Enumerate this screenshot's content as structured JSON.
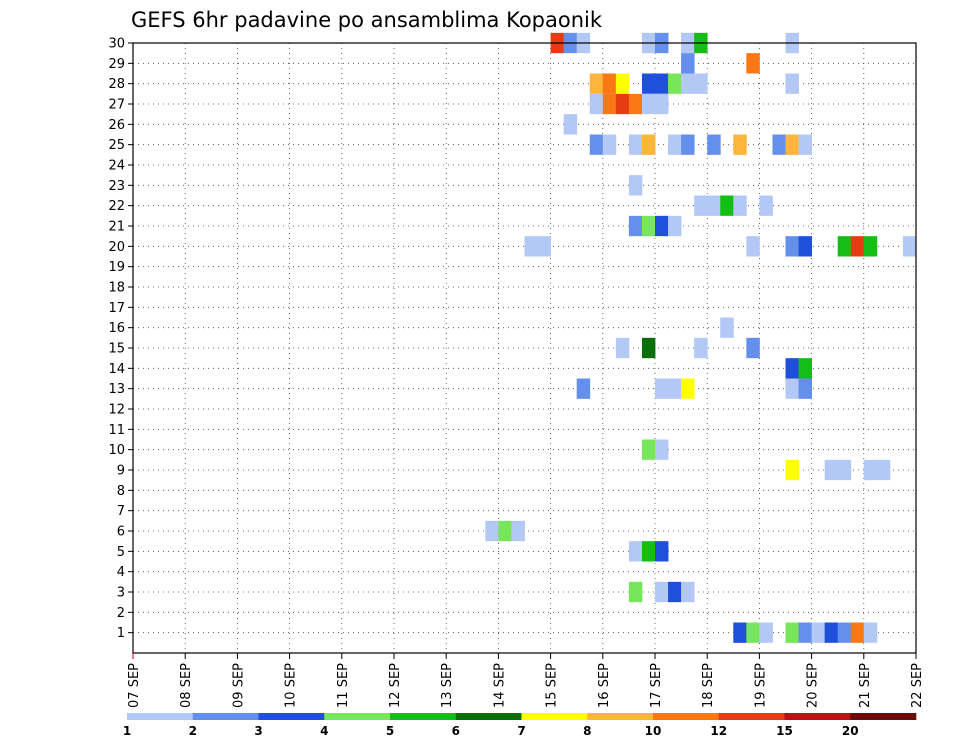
{
  "title": "GEFS 6hr padavine po ansamblima Kopaonik",
  "chart_data": {
    "type": "heatmap",
    "title": "GEFS 6hr padavine po ansamblima Kopaonik",
    "x_tick_labels": [
      "07 SEP",
      "08 SEP",
      "09 SEP",
      "10 SEP",
      "11 SEP",
      "12 SEP",
      "13 SEP",
      "14 SEP",
      "15 SEP",
      "16 SEP",
      "17 SEP",
      "18 SEP",
      "19 SEP",
      "20 SEP",
      "21 SEP",
      "22 SEP"
    ],
    "y_tick_labels": [
      "1",
      "2",
      "3",
      "4",
      "5",
      "6",
      "7",
      "8",
      "9",
      "10",
      "11",
      "12",
      "13",
      "14",
      "15",
      "16",
      "17",
      "18",
      "19",
      "20",
      "21",
      "22",
      "23",
      "24",
      "25",
      "26",
      "27",
      "28",
      "29",
      "30"
    ],
    "ylim": [
      0,
      30
    ],
    "grid": true,
    "colorbar": {
      "labels": [
        "1",
        "2",
        "3",
        "4",
        "5",
        "6",
        "7",
        "8",
        "10",
        "12",
        "15",
        "20"
      ],
      "colors": [
        "#b4c8f5",
        "#6490ec",
        "#1e50dc",
        "#78e65a",
        "#14be14",
        "#0a6e0a",
        "#ffff00",
        "#ffb43c",
        "#fa7814",
        "#e63c14",
        "#b41414",
        "#6e0a0a"
      ]
    },
    "cells": [
      {
        "member": 30,
        "day": 15.0,
        "color": "#e63c14"
      },
      {
        "member": 30,
        "day": 15.25,
        "color": "#6490ec"
      },
      {
        "member": 30,
        "day": 15.5,
        "color": "#b4c8f5"
      },
      {
        "member": 30,
        "day": 16.75,
        "color": "#b4c8f5"
      },
      {
        "member": 30,
        "day": 17.0,
        "color": "#6490ec"
      },
      {
        "member": 30,
        "day": 17.5,
        "color": "#b4c8f5"
      },
      {
        "member": 30,
        "day": 17.75,
        "color": "#14be14"
      },
      {
        "member": 30,
        "day": 19.5,
        "color": "#b4c8f5"
      },
      {
        "member": 29,
        "day": 17.5,
        "color": "#6490ec"
      },
      {
        "member": 29,
        "day": 18.75,
        "color": "#fa7814"
      },
      {
        "member": 28,
        "day": 15.75,
        "color": "#ffb43c"
      },
      {
        "member": 28,
        "day": 16.0,
        "color": "#fa7814"
      },
      {
        "member": 28,
        "day": 16.25,
        "color": "#ffff00"
      },
      {
        "member": 28,
        "day": 16.75,
        "color": "#1e50dc"
      },
      {
        "member": 28,
        "day": 17.0,
        "color": "#1e50dc"
      },
      {
        "member": 28,
        "day": 17.25,
        "color": "#78e65a"
      },
      {
        "member": 28,
        "day": 17.5,
        "color": "#b4c8f5"
      },
      {
        "member": 28,
        "day": 17.75,
        "color": "#b4c8f5"
      },
      {
        "member": 28,
        "day": 19.5,
        "color": "#b4c8f5"
      },
      {
        "member": 27,
        "day": 15.75,
        "color": "#b4c8f5"
      },
      {
        "member": 27,
        "day": 16.0,
        "color": "#fa7814"
      },
      {
        "member": 27,
        "day": 16.25,
        "color": "#e63c14"
      },
      {
        "member": 27,
        "day": 16.5,
        "color": "#fa7814"
      },
      {
        "member": 27,
        "day": 16.75,
        "color": "#b4c8f5"
      },
      {
        "member": 27,
        "day": 17.0,
        "color": "#b4c8f5"
      },
      {
        "member": 26,
        "day": 15.25,
        "color": "#b4c8f5"
      },
      {
        "member": 25,
        "day": 15.75,
        "color": "#6490ec"
      },
      {
        "member": 25,
        "day": 16.0,
        "color": "#b4c8f5"
      },
      {
        "member": 25,
        "day": 16.5,
        "color": "#b4c8f5"
      },
      {
        "member": 25,
        "day": 16.75,
        "color": "#ffb43c"
      },
      {
        "member": 25,
        "day": 17.25,
        "color": "#b4c8f5"
      },
      {
        "member": 25,
        "day": 17.5,
        "color": "#6490ec"
      },
      {
        "member": 25,
        "day": 18.0,
        "color": "#6490ec"
      },
      {
        "member": 25,
        "day": 18.5,
        "color": "#ffb43c"
      },
      {
        "member": 25,
        "day": 19.25,
        "color": "#6490ec"
      },
      {
        "member": 25,
        "day": 19.5,
        "color": "#ffb43c"
      },
      {
        "member": 25,
        "day": 19.75,
        "color": "#b4c8f5"
      },
      {
        "member": 23,
        "day": 16.5,
        "color": "#b4c8f5"
      },
      {
        "member": 22,
        "day": 17.75,
        "color": "#b4c8f5"
      },
      {
        "member": 22,
        "day": 18.0,
        "color": "#b4c8f5"
      },
      {
        "member": 22,
        "day": 18.25,
        "color": "#14be14"
      },
      {
        "member": 22,
        "day": 18.5,
        "color": "#b4c8f5"
      },
      {
        "member": 22,
        "day": 19.0,
        "color": "#b4c8f5"
      },
      {
        "member": 21,
        "day": 16.5,
        "color": "#6490ec"
      },
      {
        "member": 21,
        "day": 16.75,
        "color": "#78e65a"
      },
      {
        "member": 21,
        "day": 17.0,
        "color": "#1e50dc"
      },
      {
        "member": 21,
        "day": 17.25,
        "color": "#b4c8f5"
      },
      {
        "member": 20,
        "day": 14.5,
        "color": "#b4c8f5"
      },
      {
        "member": 20,
        "day": 14.75,
        "color": "#b4c8f5"
      },
      {
        "member": 20,
        "day": 18.75,
        "color": "#b4c8f5"
      },
      {
        "member": 20,
        "day": 19.5,
        "color": "#6490ec"
      },
      {
        "member": 20,
        "day": 19.75,
        "color": "#1e50dc"
      },
      {
        "member": 20,
        "day": 20.5,
        "color": "#14be14"
      },
      {
        "member": 20,
        "day": 20.75,
        "color": "#e63c14"
      },
      {
        "member": 20,
        "day": 21.0,
        "color": "#14be14"
      },
      {
        "member": 20,
        "day": 21.75,
        "color": "#b4c8f5"
      },
      {
        "member": 16,
        "day": 18.25,
        "color": "#b4c8f5"
      },
      {
        "member": 15,
        "day": 16.25,
        "color": "#b4c8f5"
      },
      {
        "member": 15,
        "day": 16.75,
        "color": "#0a6e0a"
      },
      {
        "member": 15,
        "day": 17.75,
        "color": "#b4c8f5"
      },
      {
        "member": 15,
        "day": 18.75,
        "color": "#6490ec"
      },
      {
        "member": 14,
        "day": 19.5,
        "color": "#1e50dc"
      },
      {
        "member": 14,
        "day": 19.75,
        "color": "#14be14"
      },
      {
        "member": 13,
        "day": 15.5,
        "color": "#6490ec"
      },
      {
        "member": 13,
        "day": 17.0,
        "color": "#b4c8f5"
      },
      {
        "member": 13,
        "day": 17.25,
        "color": "#b4c8f5"
      },
      {
        "member": 13,
        "day": 17.5,
        "color": "#ffff00"
      },
      {
        "member": 13,
        "day": 19.5,
        "color": "#b4c8f5"
      },
      {
        "member": 13,
        "day": 19.75,
        "color": "#6490ec"
      },
      {
        "member": 10,
        "day": 16.75,
        "color": "#78e65a"
      },
      {
        "member": 10,
        "day": 17.0,
        "color": "#b4c8f5"
      },
      {
        "member": 9,
        "day": 19.5,
        "color": "#ffff00"
      },
      {
        "member": 9,
        "day": 20.25,
        "color": "#b4c8f5"
      },
      {
        "member": 9,
        "day": 20.5,
        "color": "#b4c8f5"
      },
      {
        "member": 9,
        "day": 21.0,
        "color": "#b4c8f5"
      },
      {
        "member": 9,
        "day": 21.25,
        "color": "#b4c8f5"
      },
      {
        "member": 6,
        "day": 13.75,
        "color": "#b4c8f5"
      },
      {
        "member": 6,
        "day": 14.0,
        "color": "#78e65a"
      },
      {
        "member": 6,
        "day": 14.25,
        "color": "#b4c8f5"
      },
      {
        "member": 5,
        "day": 16.5,
        "color": "#b4c8f5"
      },
      {
        "member": 5,
        "day": 16.75,
        "color": "#14be14"
      },
      {
        "member": 5,
        "day": 17.0,
        "color": "#1e50dc"
      },
      {
        "member": 3,
        "day": 16.5,
        "color": "#78e65a"
      },
      {
        "member": 3,
        "day": 17.0,
        "color": "#b4c8f5"
      },
      {
        "member": 3,
        "day": 17.25,
        "color": "#1e50dc"
      },
      {
        "member": 3,
        "day": 17.5,
        "color": "#b4c8f5"
      },
      {
        "member": 1,
        "day": 18.5,
        "color": "#1e50dc"
      },
      {
        "member": 1,
        "day": 18.75,
        "color": "#78e65a"
      },
      {
        "member": 1,
        "day": 19.0,
        "color": "#b4c8f5"
      },
      {
        "member": 1,
        "day": 19.5,
        "color": "#78e65a"
      },
      {
        "member": 1,
        "day": 19.75,
        "color": "#6490ec"
      },
      {
        "member": 1,
        "day": 20.0,
        "color": "#b4c8f5"
      },
      {
        "member": 1,
        "day": 20.25,
        "color": "#1e50dc"
      },
      {
        "member": 1,
        "day": 20.5,
        "color": "#6490ec"
      },
      {
        "member": 1,
        "day": 20.75,
        "color": "#fa7814"
      },
      {
        "member": 1,
        "day": 21.0,
        "color": "#b4c8f5"
      }
    ]
  }
}
